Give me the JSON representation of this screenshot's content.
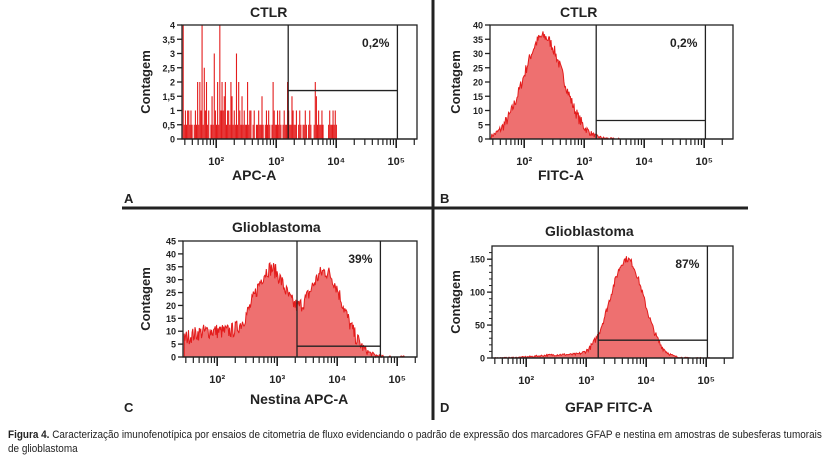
{
  "caption": {
    "label": "Figura 4.",
    "text": " Caracterização imunofenotípica por ensaios de citometria de fluxo evidenciando o padrão de expressão dos marcadores GFAP e nestina em amostras de subesferas tumorais de glioblastoma"
  },
  "colors": {
    "fill": "#ee7070",
    "stroke": "#e31c1c",
    "frame": "#222222"
  },
  "chart_data": [
    {
      "panel": "A",
      "type": "bar",
      "title": "CTLR",
      "xlabel": "APC-A",
      "ylabel": "Contagem",
      "xscale": "log",
      "xlim_log10": [
        1.43,
        5.45
      ],
      "ylim": [
        0,
        4
      ],
      "yticks": [
        "0",
        "0,5",
        "1",
        "1,5",
        "2",
        "2,5",
        "3",
        "3,5",
        "4"
      ],
      "xticks": [
        "10²",
        "10³",
        "10⁴",
        "10⁵"
      ],
      "gate": {
        "x_from_log10": 3.2,
        "x_to_log10": 5.02,
        "y": 1.7,
        "label": "0,2%"
      },
      "filled": false,
      "bins_start_log10": 1.45,
      "bin_width_log10": 0.0185,
      "values": [
        4,
        0.5,
        1,
        0.5,
        1,
        1,
        0.5,
        1,
        0.5,
        0,
        0.5,
        1,
        0.5,
        2,
        0.5,
        2,
        1,
        4,
        0.5,
        2.5,
        1,
        2,
        0.5,
        1,
        0,
        0.5,
        1.5,
        0.5,
        3,
        1,
        0.5,
        2,
        0.5,
        4,
        1,
        2,
        1,
        1.5,
        2,
        0.5,
        1,
        1,
        0.5,
        2,
        1.5,
        0.5,
        1,
        0.5,
        3,
        0.5,
        2,
        1,
        0.5,
        1.5,
        0.5,
        1,
        0.5,
        0.5,
        2,
        0.5,
        1,
        1,
        0,
        0.5,
        1,
        0,
        0.5,
        0.5,
        1,
        0.5,
        0.5,
        1.5,
        0.5,
        0,
        0.5,
        1,
        0.5,
        1,
        0.5,
        0,
        0.5,
        2,
        1,
        0.5,
        0.5,
        1,
        0.5,
        1,
        0.5,
        0,
        0.5,
        1,
        0.5,
        0.5,
        2,
        1,
        0.5,
        0.5,
        1.5,
        1,
        0.5,
        0.5,
        1,
        0,
        0.5,
        1,
        0.5,
        0,
        0.5,
        0.5,
        1,
        0.5,
        0,
        0.5,
        1,
        0.5,
        0,
        0,
        0.5,
        2,
        1.5,
        0.5,
        1,
        0.5,
        0.5,
        1,
        0.5,
        0,
        0,
        0,
        0,
        0.5,
        1,
        0.5,
        0.5,
        1,
        0.5,
        1,
        0.5
      ]
    },
    {
      "panel": "B",
      "type": "area",
      "title": "CTLR",
      "xlabel": "FITC-A",
      "ylabel": "Contagem",
      "xscale": "log",
      "xlim_log10": [
        1.43,
        5.45
      ],
      "ylim": [
        0,
        40
      ],
      "yticks": [
        "0",
        "5",
        "10",
        "15",
        "20",
        "25",
        "30",
        "35",
        "40"
      ],
      "xticks": [
        "10²",
        "10³",
        "10⁴",
        "10⁵"
      ],
      "gate": {
        "x_from_log10": 3.2,
        "x_to_log10": 5.02,
        "y": 6.5,
        "label": "0,2%"
      },
      "filled": true,
      "peaks": [
        {
          "center_log10": 2.32,
          "sigma_log10": 0.33,
          "height": 36
        }
      ],
      "noise": 4,
      "max_value": 40
    },
    {
      "panel": "C",
      "type": "area",
      "title": "Glioblastoma",
      "xlabel": "Nestina APC-A",
      "ylabel": "Contagem",
      "xscale": "log",
      "xlim_log10": [
        1.43,
        5.45
      ],
      "ylim": [
        0,
        45
      ],
      "yticks": [
        "0",
        "5",
        "10",
        "15",
        "20",
        "25",
        "30",
        "35",
        "40",
        "45"
      ],
      "xticks": [
        "10²",
        "10³",
        "10⁴",
        "10⁵"
      ],
      "gate": {
        "x_from_log10": 3.33,
        "x_to_log10": 4.72,
        "y": 4.2,
        "label": "39%"
      },
      "filled": true,
      "peaks": [
        {
          "center_log10": 2.9,
          "sigma_log10": 0.28,
          "height": 32
        },
        {
          "center_log10": 1.9,
          "sigma_log10": 0.55,
          "height": 10
        },
        {
          "center_log10": 3.8,
          "sigma_log10": 0.3,
          "height": 33
        }
      ],
      "noise": 6,
      "max_value": 45
    },
    {
      "panel": "D",
      "type": "area",
      "title": "Glioblastoma",
      "xlabel": "GFAP FITC-A",
      "ylabel": "Contagem",
      "xscale": "log",
      "xlim_log10": [
        1.43,
        5.45
      ],
      "ylim": [
        0,
        170
      ],
      "yticks": [
        "0",
        "50",
        "100",
        "150"
      ],
      "xticks": [
        "10²",
        "10³",
        "10⁴",
        "10⁵"
      ],
      "gate": {
        "x_from_log10": 3.2,
        "x_to_log10": 5.02,
        "y": 27,
        "label": "87%"
      },
      "filled": true,
      "peaks": [
        {
          "center_log10": 3.68,
          "sigma_log10": 0.28,
          "height": 150
        },
        {
          "center_log10": 2.6,
          "sigma_log10": 0.4,
          "height": 5
        }
      ],
      "noise": 10,
      "max_value": 165
    }
  ]
}
